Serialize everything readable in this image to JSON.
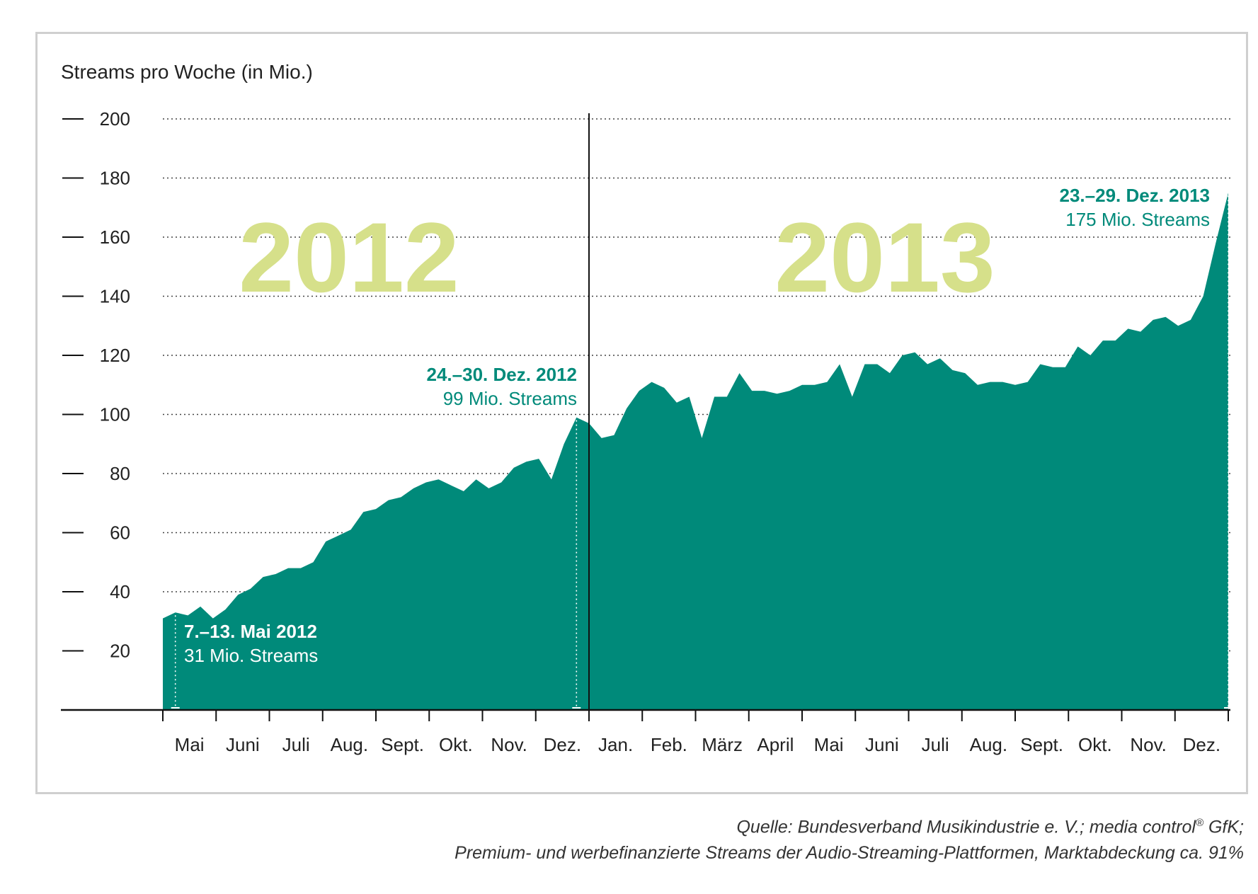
{
  "chart_data": {
    "type": "area",
    "ylabel": "Streams pro Woche (in Mio.)",
    "ylim": [
      0,
      200
    ],
    "yticks": [
      20,
      40,
      60,
      80,
      100,
      120,
      140,
      160,
      180,
      200
    ],
    "grid": "horizontal dotted",
    "color": "#008a7a",
    "periods": [
      {
        "label": "2012",
        "months": [
          "Mai",
          "Juni",
          "Juli",
          "Aug.",
          "Sept.",
          "Okt.",
          "Nov.",
          "Dez."
        ]
      },
      {
        "label": "2013",
        "months": [
          "Jan.",
          "Feb.",
          "März",
          "April",
          "Mai",
          "Juni",
          "Juli",
          "Aug.",
          "Sept.",
          "Okt.",
          "Nov.",
          "Dez."
        ]
      }
    ],
    "series": [
      {
        "values": [
          31,
          33,
          32,
          35,
          31,
          34,
          39,
          41,
          45,
          46,
          48,
          48,
          50,
          57,
          59,
          61,
          67,
          68,
          71,
          72,
          75,
          77,
          78,
          76,
          74,
          78,
          75,
          77,
          82,
          84,
          85,
          78,
          90,
          99,
          97,
          92,
          93,
          102,
          108,
          111,
          109,
          104,
          106,
          92,
          106,
          106,
          114,
          108,
          108,
          107,
          108,
          110,
          110,
          111,
          117,
          106,
          117,
          117,
          114,
          120,
          121,
          117,
          119,
          115,
          114,
          110,
          111,
          111,
          110,
          111,
          117,
          116,
          116,
          123,
          120,
          125,
          125,
          129,
          128,
          132,
          133,
          130,
          132,
          140,
          158,
          175
        ]
      }
    ],
    "annotations": [
      {
        "title": "7.–13. Mai 2012",
        "text": "31 Mio. Streams"
      },
      {
        "title": "24.–30. Dez. 2012",
        "text": "99 Mio. Streams"
      },
      {
        "title": "23.–29. Dez. 2013",
        "text": "175 Mio. Streams"
      }
    ]
  },
  "source": {
    "line1_prefix": "Quelle: Bundesverband Musikindustrie e. V.; media control",
    "line1_sup": "®",
    "line1_suffix": " GfK;",
    "line2": "Premium- und werbefinanzierte Streams der Audio-Streaming-Plattformen, Marktabdeckung ca. 91%"
  }
}
